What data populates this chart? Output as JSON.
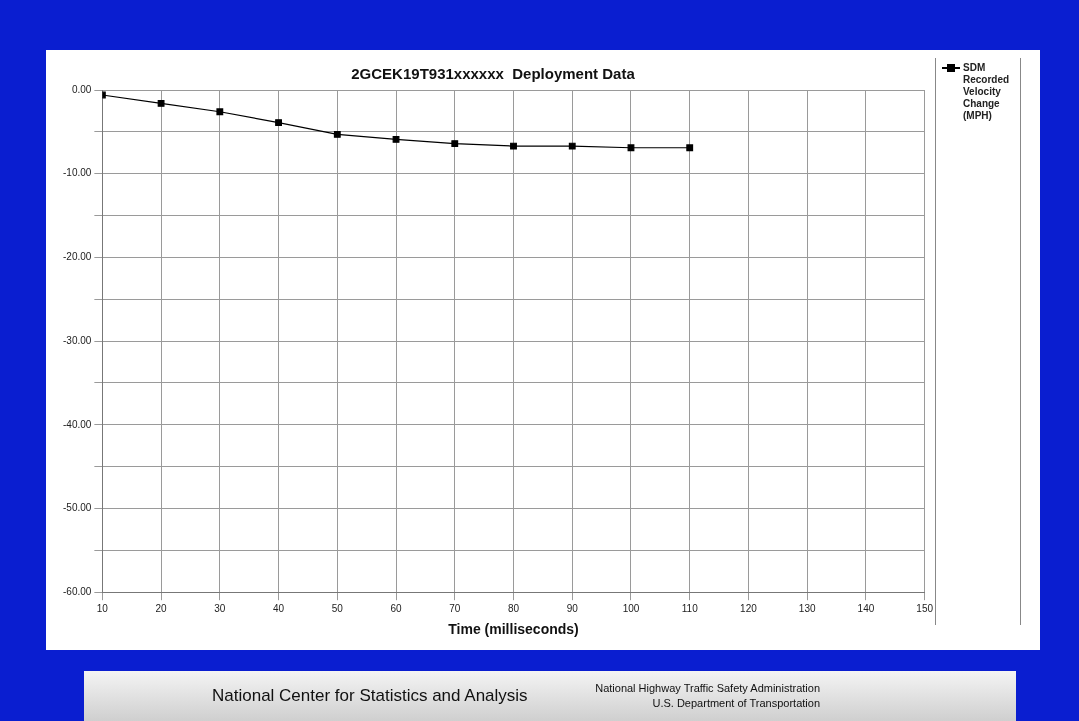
{
  "chart_data": {
    "type": "line",
    "title": "2GCEK19T931xxxxxx  Deployment Data",
    "xlabel": "Time (milliseconds)",
    "x": [
      10,
      20,
      30,
      40,
      50,
      60,
      70,
      80,
      90,
      100,
      110
    ],
    "series": [
      {
        "name": "SDM Recorded Velocity Change (MPH)",
        "color": "#000000",
        "values": [
          -0.6,
          -1.6,
          -2.6,
          -3.9,
          -5.3,
          -5.9,
          -6.4,
          -6.7,
          -6.7,
          -6.9,
          -6.9
        ]
      }
    ],
    "xlim": [
      10,
      150
    ],
    "xticks": [
      10,
      20,
      30,
      40,
      50,
      60,
      70,
      80,
      90,
      100,
      110,
      120,
      130,
      140,
      150
    ],
    "ylim": [
      -60,
      0
    ],
    "yticks": [
      {
        "value": 0,
        "label": "0.00"
      },
      {
        "value": -5,
        "label": null
      },
      {
        "value": -10,
        "label": "-10.00"
      },
      {
        "value": -15,
        "label": null
      },
      {
        "value": -20,
        "label": "-20.00"
      },
      {
        "value": -25,
        "label": null
      },
      {
        "value": -30,
        "label": "-30.00"
      },
      {
        "value": -35,
        "label": null
      },
      {
        "value": -40,
        "label": "-40.00"
      },
      {
        "value": -45,
        "label": null
      },
      {
        "value": -50,
        "label": "-50.00"
      },
      {
        "value": -55,
        "label": null
      },
      {
        "value": -60,
        "label": "-60.00"
      }
    ],
    "grid": true,
    "legend": "right",
    "marker": "square",
    "line_style": "solid",
    "annotations": [
      "National Center for Statistics and Analysis",
      "National Highway Traffic Safety Administration",
      "U.S. Department of Transportation"
    ]
  }
}
